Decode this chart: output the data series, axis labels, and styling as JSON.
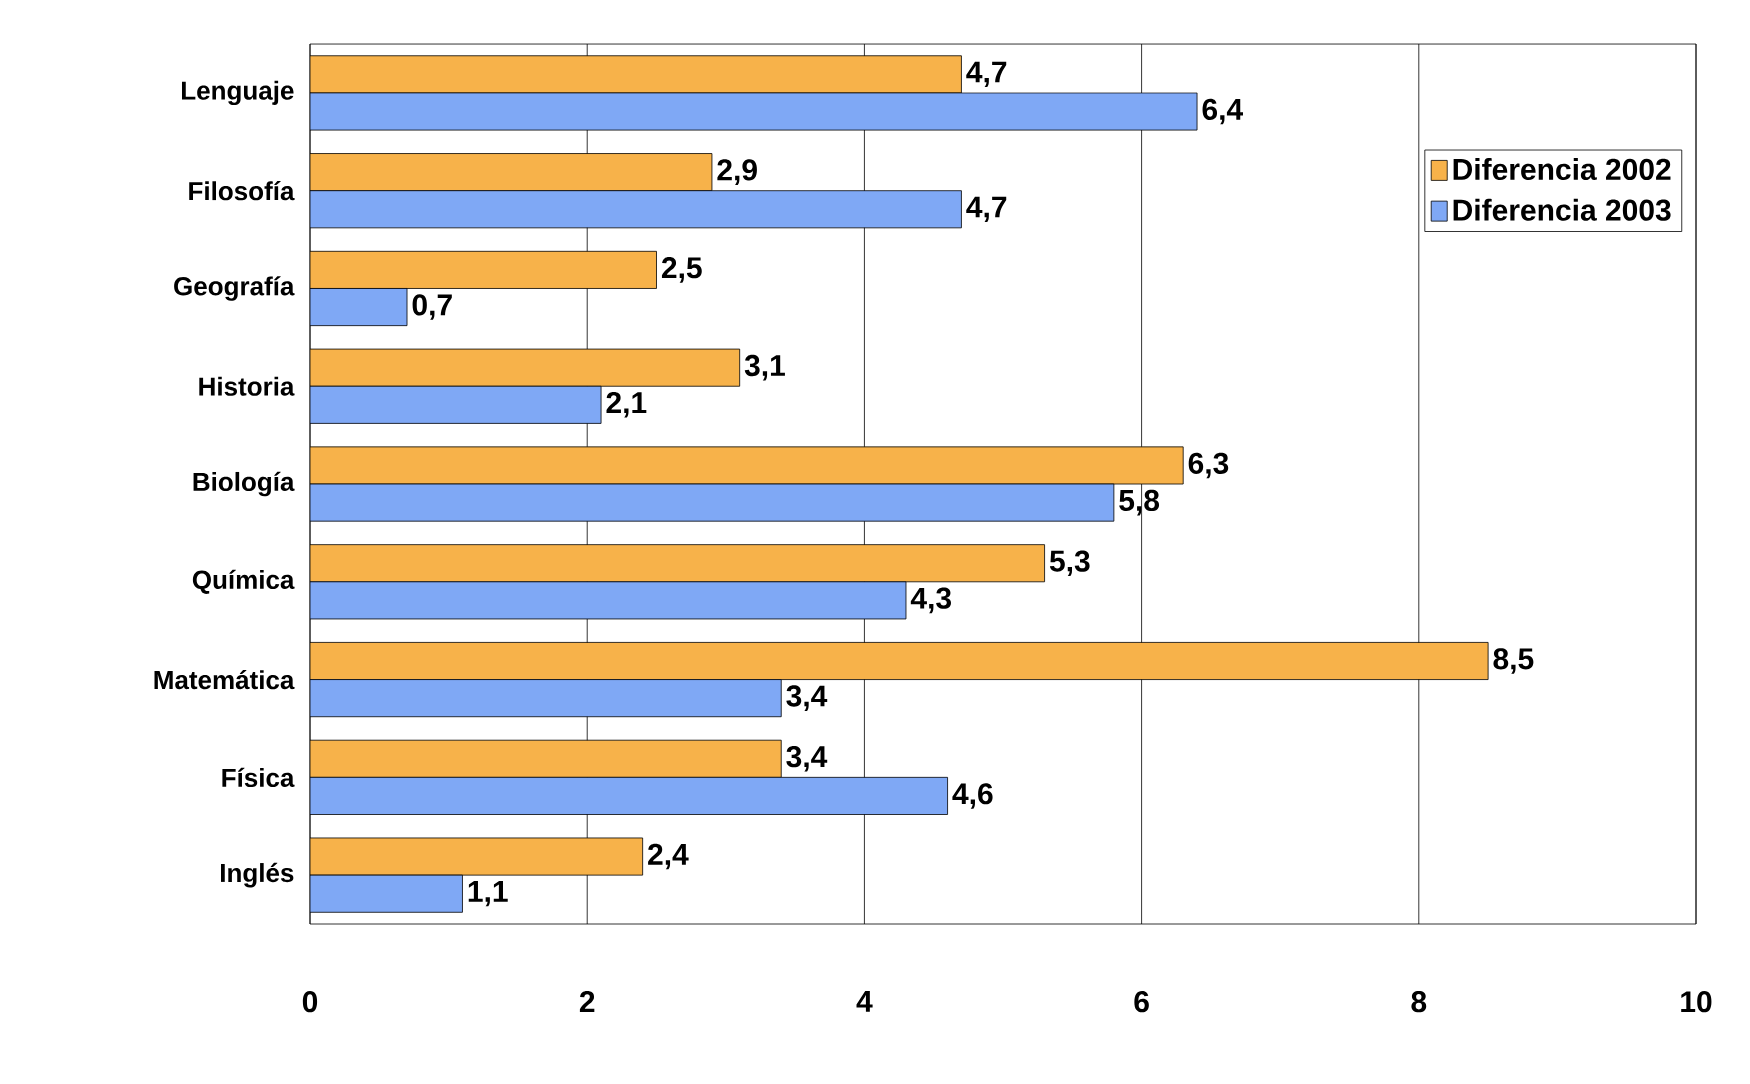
{
  "chart_data": {
    "type": "bar",
    "orientation": "horizontal",
    "categories": [
      "Lenguaje",
      "Filosofía",
      "Geografía",
      "Historia",
      "Biología",
      "Química",
      "Matemática",
      "Física",
      "Inglés"
    ],
    "series": [
      {
        "name": "Diferencia 2002",
        "color": "#f7b24a",
        "values": [
          4.7,
          2.9,
          2.5,
          3.1,
          6.3,
          5.3,
          8.5,
          3.4,
          2.4
        ],
        "value_labels": [
          "4,7",
          "2,9",
          "2,5",
          "3,1",
          "6,3",
          "5,3",
          "8,5",
          "3,4",
          "2,4"
        ]
      },
      {
        "name": "Diferencia 2003",
        "color": "#7fa8f5",
        "values": [
          6.4,
          4.7,
          0.7,
          2.1,
          5.8,
          4.3,
          3.4,
          4.6,
          1.1
        ],
        "value_labels": [
          "6,4",
          "4,7",
          "0,7",
          "2,1",
          "5,8",
          "4,3",
          "3,4",
          "4,6",
          "1,1"
        ]
      }
    ],
    "xlim": [
      0,
      10
    ],
    "xticks": [
      0,
      2,
      4,
      6,
      8,
      10
    ],
    "grid": "x",
    "legend": "top right"
  }
}
